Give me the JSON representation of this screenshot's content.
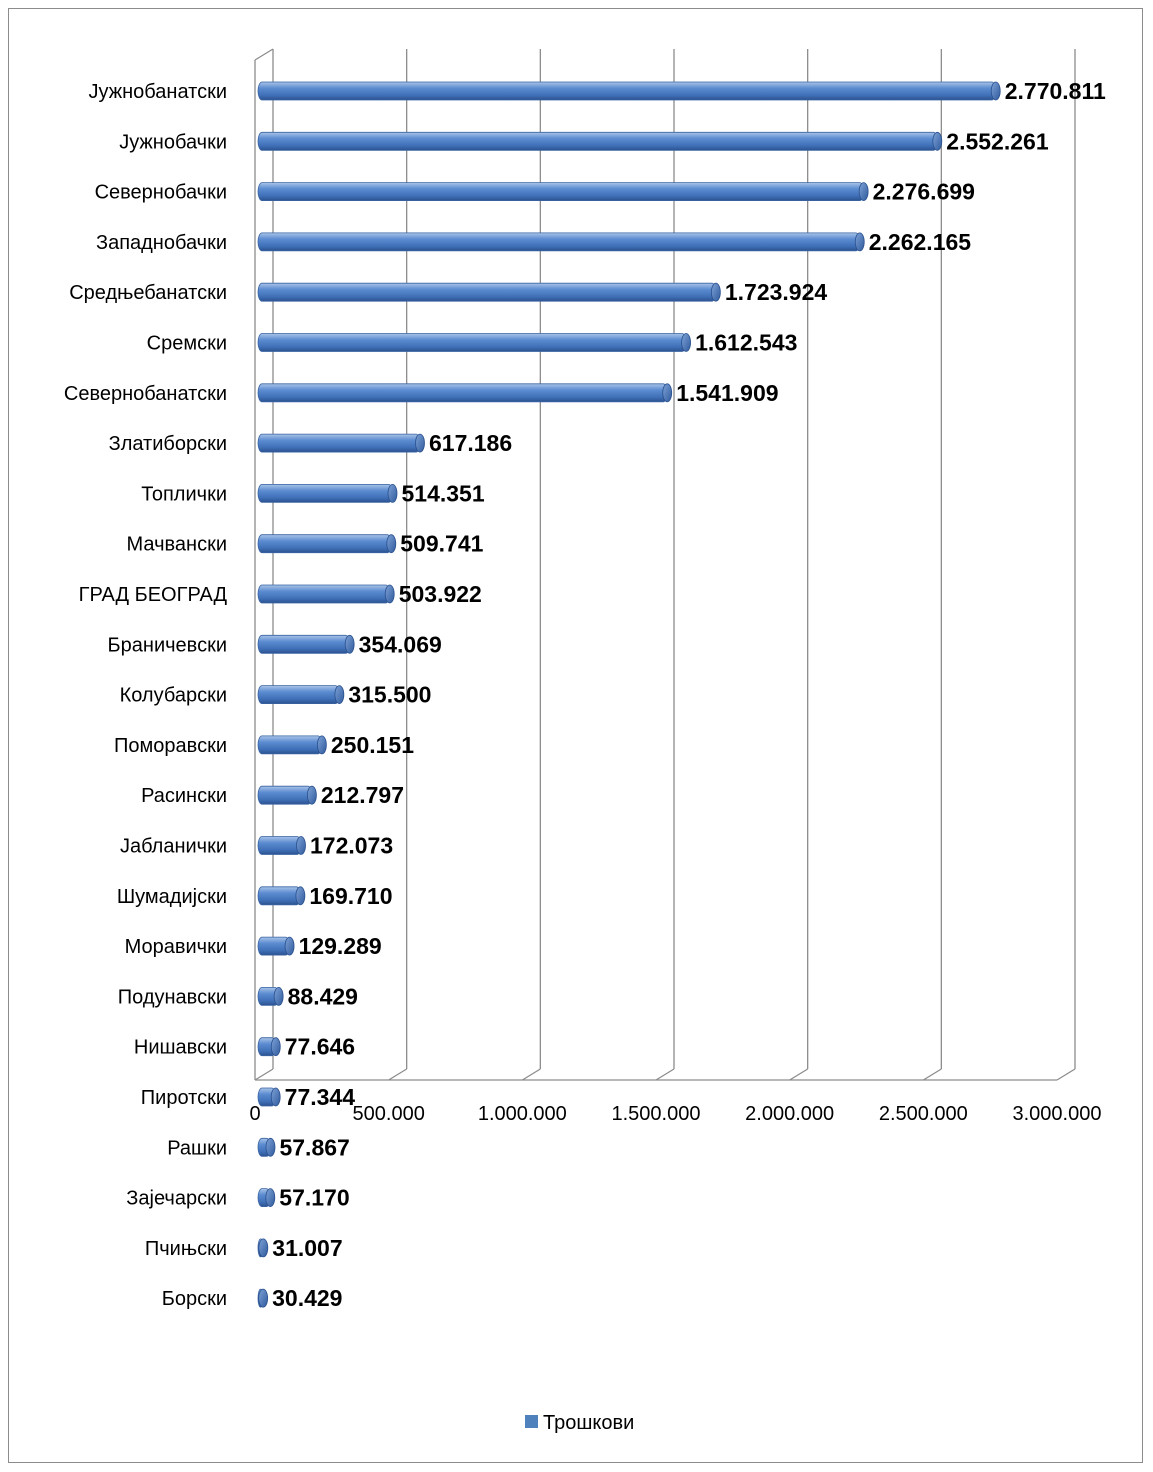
{
  "chart_data": {
    "type": "bar",
    "orientation": "horizontal",
    "categories": [
      "Јужнобанатски",
      "Јужнобачки",
      "Севернобачки",
      "Западнобачки",
      "Средњебанатски",
      "Сремски",
      "Севернобанатски",
      "Златиборски",
      "Топлички",
      "Мачвански",
      "ГРАД БЕОГРАД",
      "Браничевски",
      "Колубарски",
      "Поморавски",
      "Расински",
      "Јабланички",
      "Шумадијски",
      "Моравички",
      "Подунавски",
      "Нишавски",
      "Пиротски",
      "Рашки",
      "Зајечарски",
      "Пчињски",
      "Борски"
    ],
    "series": [
      {
        "name": "Трошкови",
        "color": "#4f81bd",
        "values": [
          2770811,
          2552261,
          2276699,
          2262165,
          1723924,
          1612543,
          1541909,
          617186,
          514351,
          509741,
          503922,
          354069,
          315500,
          250151,
          212797,
          172073,
          169710,
          129289,
          88429,
          77646,
          77344,
          57867,
          57170,
          31007,
          30429
        ],
        "labels": [
          "2.770.811",
          "2.552.261",
          "2.276.699",
          "2.262.165",
          "1.723.924",
          "1.612.543",
          "1.541.909",
          "617.186",
          "514.351",
          "509.741",
          "503.922",
          "354.069",
          "315.500",
          "250.151",
          "212.797",
          "172.073",
          "169.710",
          "129.289",
          "88.429",
          "77.646",
          "77.344",
          "57.867",
          "57.170",
          "31.007",
          "30.429"
        ]
      }
    ],
    "x_ticks": [
      0,
      500000,
      1000000,
      1500000,
      2000000,
      2500000,
      3000000
    ],
    "x_tick_labels": [
      "0",
      "500.000",
      "1.000.000",
      "1.500.000",
      "2.000.000",
      "2.500.000",
      "3.000.000"
    ],
    "xlim": [
      0,
      3000000
    ],
    "title": "",
    "xlabel": "",
    "ylabel": "",
    "grid": true,
    "legend_position": "bottom",
    "style": "3d-cylinder"
  }
}
